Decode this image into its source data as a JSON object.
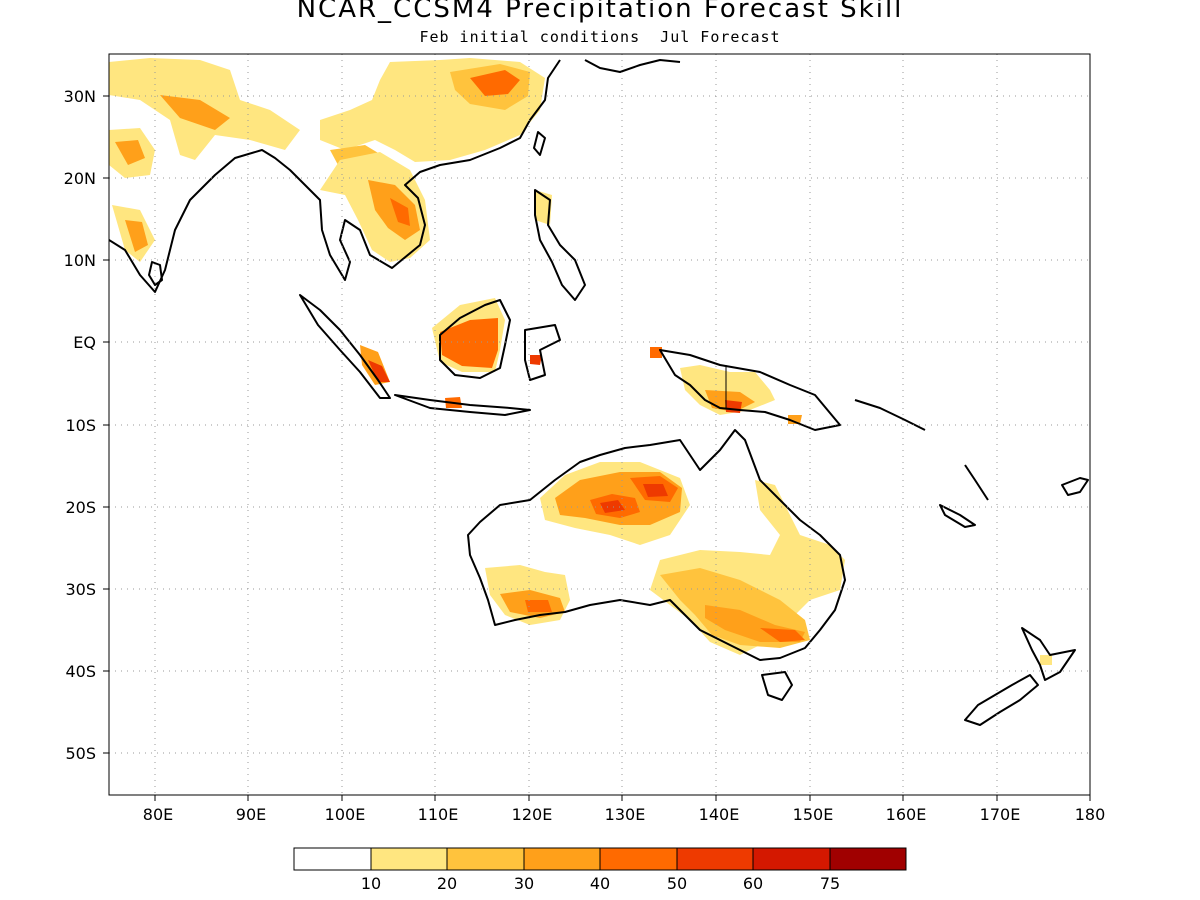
{
  "title": "NCAR_CCSM4 Precipitation Forecast Skill",
  "subtitle": "Feb initial conditions  Jul Forecast",
  "map": {
    "lon_range": [
      75,
      180
    ],
    "lat_range": [
      -55,
      35
    ],
    "lon_ticks": [
      "80E",
      "90E",
      "100E",
      "110E",
      "120E",
      "130E",
      "140E",
      "150E",
      "160E",
      "170E",
      "180"
    ],
    "lat_ticks": [
      "30N",
      "20N",
      "10N",
      "EQ",
      "10S",
      "20S",
      "30S",
      "40S",
      "50S"
    ],
    "grid": "dotted",
    "land_outline_color": "#000000"
  },
  "colorbar": {
    "labels": [
      "10",
      "20",
      "30",
      "40",
      "50",
      "60",
      "75"
    ],
    "colors": [
      "#ffffff",
      "#ffe680",
      "#ffc33d",
      "#ffa01a",
      "#ff6a00",
      "#ee3a00",
      "#d41800",
      "#a00000"
    ]
  }
}
